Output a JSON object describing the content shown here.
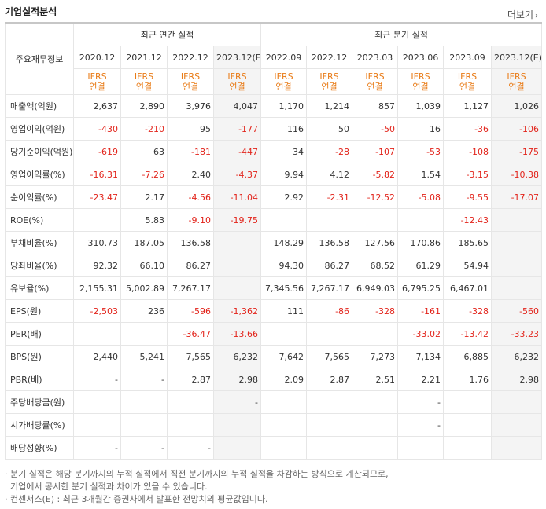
{
  "title": "기업실적분석",
  "more_label": "더보기",
  "header": {
    "corner_label": "주요재무정보",
    "annual_group": "최근 연간 실적",
    "quarterly_group": "최근 분기 실적",
    "periods": [
      "2020.12",
      "2021.12",
      "2022.12",
      "2023.12(E)",
      "2022.09",
      "2022.12",
      "2023.03",
      "2023.06",
      "2023.09",
      "2023.12(E)"
    ],
    "ifrs_top": "IFRS",
    "ifrs_bottom": "연결"
  },
  "rows": [
    {
      "label": "매출액(억원)",
      "values": [
        "2,637",
        "2,890",
        "3,976",
        "4,047",
        "1,170",
        "1,214",
        "857",
        "1,039",
        "1,127",
        "1,026"
      ]
    },
    {
      "label": "영업이익(억원)",
      "values": [
        "-430",
        "-210",
        "95",
        "-177",
        "116",
        "50",
        "-50",
        "16",
        "-36",
        "-106"
      ]
    },
    {
      "label": "당기순이익(억원)",
      "values": [
        "-619",
        "63",
        "-181",
        "-447",
        "34",
        "-28",
        "-107",
        "-53",
        "-108",
        "-175"
      ]
    },
    {
      "label": "영업이익률(%)",
      "values": [
        "-16.31",
        "-7.26",
        "2.40",
        "-4.37",
        "9.94",
        "4.12",
        "-5.82",
        "1.54",
        "-3.15",
        "-10.38"
      ]
    },
    {
      "label": "순이익률(%)",
      "values": [
        "-23.47",
        "2.17",
        "-4.56",
        "-11.04",
        "2.92",
        "-2.31",
        "-12.52",
        "-5.08",
        "-9.55",
        "-17.07"
      ]
    },
    {
      "label": "ROE(%)",
      "values": [
        "",
        "5.83",
        "-9.10",
        "-19.75",
        "",
        "",
        "",
        "",
        "-12.43",
        ""
      ]
    },
    {
      "label": "부채비율(%)",
      "values": [
        "310.73",
        "187.05",
        "136.58",
        "",
        "148.29",
        "136.58",
        "127.56",
        "170.86",
        "185.65",
        ""
      ]
    },
    {
      "label": "당좌비율(%)",
      "values": [
        "92.32",
        "66.10",
        "86.27",
        "",
        "94.30",
        "86.27",
        "68.52",
        "61.29",
        "54.94",
        ""
      ]
    },
    {
      "label": "유보율(%)",
      "values": [
        "2,155.31",
        "5,002.89",
        "7,267.17",
        "",
        "7,345.56",
        "7,267.17",
        "6,949.03",
        "6,795.25",
        "6,467.01",
        ""
      ]
    },
    {
      "label": "EPS(원)",
      "values": [
        "-2,503",
        "236",
        "-596",
        "-1,362",
        "111",
        "-86",
        "-328",
        "-161",
        "-328",
        "-560"
      ]
    },
    {
      "label": "PER(배)",
      "values": [
        "",
        "",
        "-36.47",
        "-13.66",
        "",
        "",
        "",
        "-33.02",
        "-13.42",
        "-33.23"
      ]
    },
    {
      "label": "BPS(원)",
      "values": [
        "2,440",
        "5,241",
        "7,565",
        "6,232",
        "7,642",
        "7,565",
        "7,273",
        "7,134",
        "6,885",
        "6,232"
      ]
    },
    {
      "label": "PBR(배)",
      "values": [
        "-",
        "-",
        "2.87",
        "2.98",
        "2.09",
        "2.87",
        "2.51",
        "2.21",
        "1.76",
        "2.98"
      ]
    },
    {
      "label": "주당배당금(원)",
      "values": [
        "",
        "",
        "",
        "-",
        "",
        "",
        "",
        "-",
        "",
        ""
      ]
    },
    {
      "label": "시가배당률(%)",
      "values": [
        "",
        "",
        "",
        "",
        "",
        "",
        "",
        "-",
        "",
        ""
      ]
    },
    {
      "label": "배당성향(%)",
      "values": [
        "-",
        "-",
        "-",
        "",
        "",
        "",
        "",
        "",
        "",
        ""
      ]
    }
  ],
  "notes": [
    "· 분기 실적은 해당 분기까지의 누적 실적에서 직전 분기까지의 누적 실적을 차감하는 방식으로 계산되므로,",
    "  기업에서 공시한 분기 실적과 차이가 있을 수 있습니다.",
    "· 컨센서스(E) : 최근 3개월간 증권사에서 발표한 전망치의 평균값입니다."
  ],
  "colors": {
    "negative": "#e2231a",
    "ifrs": "#e97c18",
    "estimate_bg": "#f4f4f4"
  }
}
